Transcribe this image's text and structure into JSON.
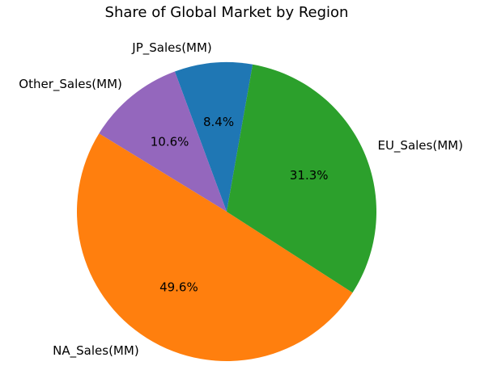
{
  "chart_data": {
    "type": "pie",
    "title": "Share of Global Market by Region",
    "start_angle_deg": 80,
    "direction": "counterclockwise",
    "slices": [
      {
        "label": "JP_Sales(MM)",
        "value": 8.4,
        "pct_label": "8.4%",
        "color": "#1f77b4"
      },
      {
        "label": "Other_Sales(MM)",
        "value": 10.6,
        "pct_label": "10.6%",
        "color": "#9467bd"
      },
      {
        "label": "NA_Sales(MM)",
        "value": 49.6,
        "pct_label": "49.6%",
        "color": "#ff7f0e"
      },
      {
        "label": "EU_Sales(MM)",
        "value": 31.3,
        "pct_label": "31.3%",
        "color": "#2ca02c"
      }
    ]
  }
}
